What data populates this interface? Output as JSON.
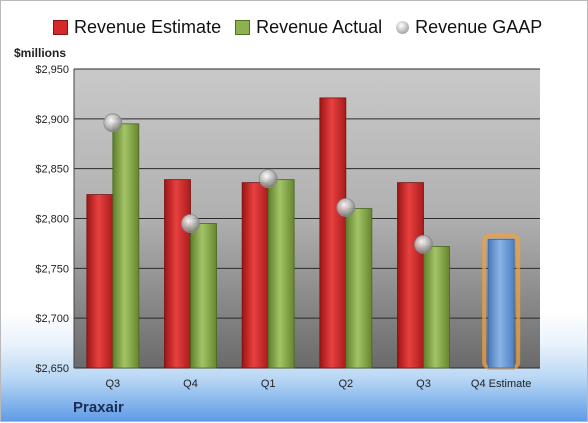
{
  "legend": {
    "estimate": "Revenue Estimate",
    "actual": "Revenue Actual",
    "gaap": "Revenue GAAP"
  },
  "unit_label": "$millions",
  "company": "Praxair",
  "colors": {
    "estimate": "#d42a2a",
    "actual": "#8db050",
    "forecast": "#6f9fd8",
    "gaap": "#b5b5b5"
  },
  "chart_data": {
    "type": "bar",
    "categories": [
      "Q3",
      "Q4",
      "Q1",
      "Q2",
      "Q3",
      "Q4 Estimate"
    ],
    "series": [
      {
        "name": "Revenue Estimate",
        "values": [
          2824,
          2839,
          2836,
          2921,
          2836,
          null
        ]
      },
      {
        "name": "Revenue Actual",
        "values": [
          2895,
          2795,
          2839,
          2810,
          2772,
          2779
        ]
      },
      {
        "name": "Revenue GAAP",
        "values": [
          2896,
          2795,
          2840,
          2811,
          2774,
          null
        ]
      }
    ],
    "ylabel": "$millions",
    "ylim": [
      2650,
      2950
    ],
    "yticks": [
      "$2,650",
      "$2,700",
      "$2,750",
      "$2,800",
      "$2,850",
      "$2,900",
      "$2,950"
    ],
    "grid": true,
    "legend": "top"
  }
}
